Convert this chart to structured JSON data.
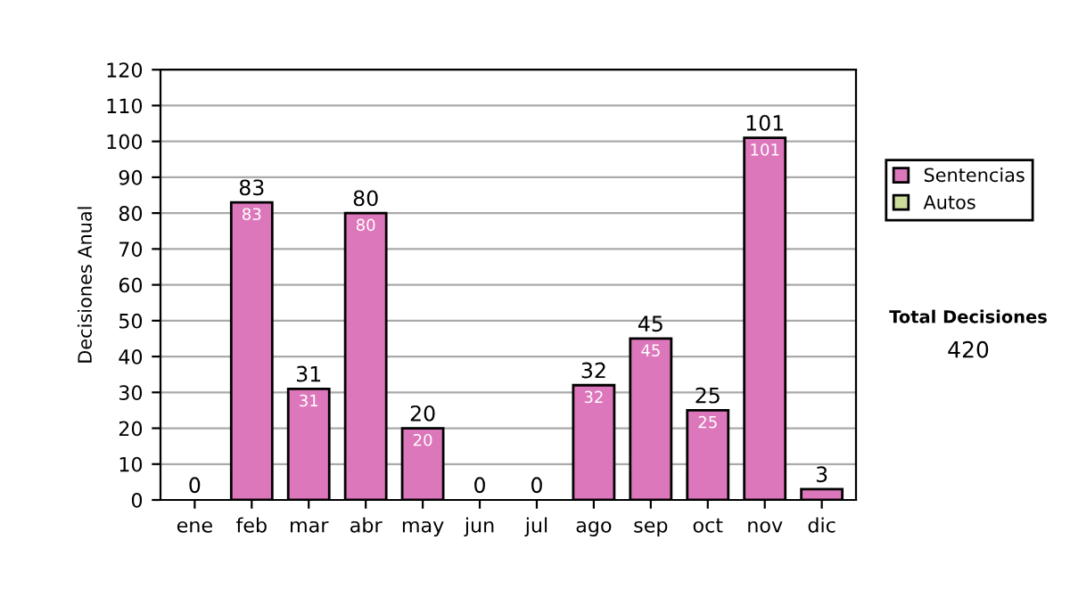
{
  "chart_data": {
    "type": "bar",
    "ylabel": "Decisiones Anual",
    "stacked": true,
    "categories": [
      "ene",
      "feb",
      "mar",
      "abr",
      "may",
      "jun",
      "jul",
      "ago",
      "sep",
      "oct",
      "nov",
      "dic"
    ],
    "series": [
      {
        "name": "Sentencias",
        "color": "#dd77bb",
        "values": [
          0,
          83,
          31,
          80,
          20,
          0,
          0,
          32,
          45,
          25,
          101,
          3
        ],
        "value_labels": [
          null,
          "83",
          "31",
          "80",
          "20",
          null,
          null,
          "32",
          "45",
          "25",
          "101",
          null
        ]
      },
      {
        "name": "Autos",
        "color": "#ccdd99",
        "values": [
          0,
          0,
          0,
          0,
          0,
          0,
          0,
          0,
          0,
          0,
          0,
          0
        ]
      }
    ],
    "totals": [
      "0",
      "83",
      "31",
      "80",
      "20",
      "0",
      "0",
      "32",
      "45",
      "25",
      "101",
      "3"
    ],
    "ylim": [
      0,
      120
    ],
    "yticks": [
      0,
      10,
      20,
      30,
      40,
      50,
      60,
      70,
      80,
      90,
      100,
      110,
      120
    ],
    "grid": "y",
    "legend": "right",
    "annotations": [
      "Total Decisiones",
      "420"
    ]
  }
}
